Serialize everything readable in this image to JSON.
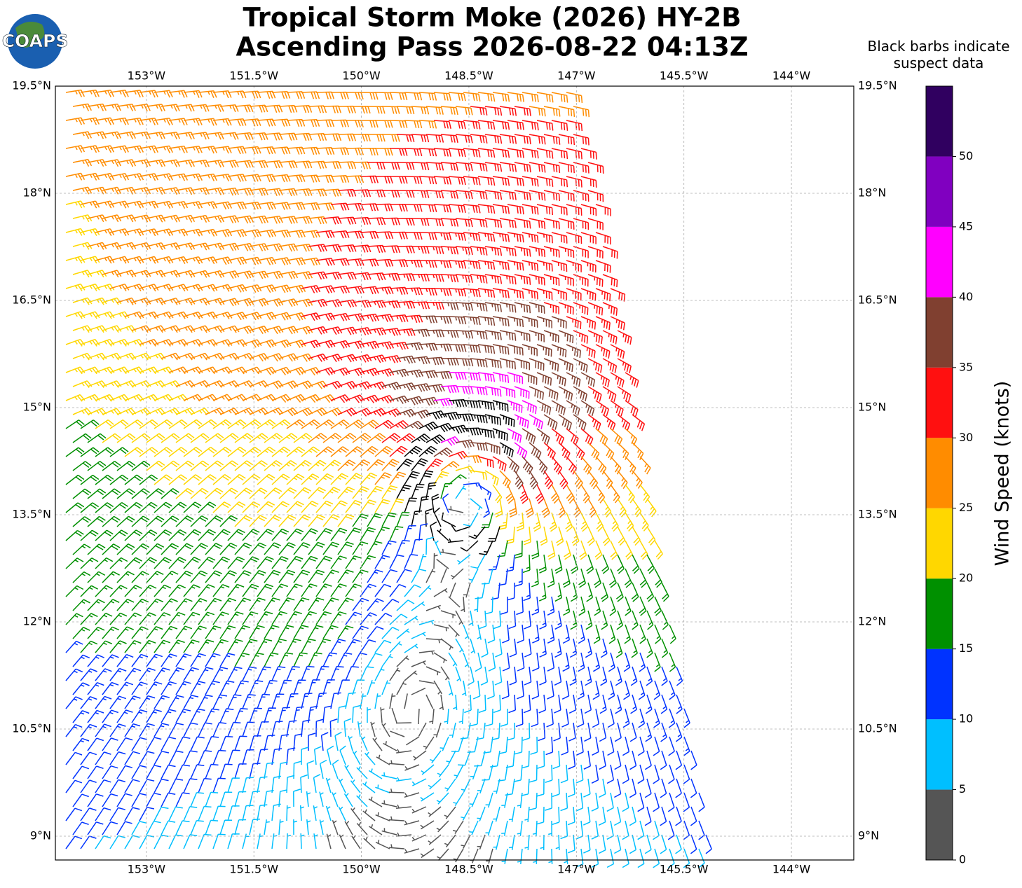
{
  "logo": "COAPS",
  "title": [
    "Tropical Storm Moke (2026) HY-2B",
    "Ascending Pass 2026-08-22 04:13Z"
  ],
  "note": "Black barbs indicate\nsuspect data",
  "map": {
    "xlim": [
      -154.27,
      -143.13
    ],
    "ylim": [
      8.667,
      19.5
    ],
    "xticks": [
      {
        "value": -153,
        "label": "153°W"
      },
      {
        "value": -151.5,
        "label": "151.5°W"
      },
      {
        "value": -150,
        "label": "150°W"
      },
      {
        "value": -148.5,
        "label": "148.5°W"
      },
      {
        "value": -147,
        "label": "147°W"
      },
      {
        "value": -145.5,
        "label": "145.5°W"
      },
      {
        "value": -144,
        "label": "144°W"
      }
    ],
    "yticks": [
      {
        "value": 9,
        "label": "9°N"
      },
      {
        "value": 10.5,
        "label": "10.5°N"
      },
      {
        "value": 12,
        "label": "12°N"
      },
      {
        "value": 13.5,
        "label": "13.5°N"
      },
      {
        "value": 15,
        "label": "15°N"
      },
      {
        "value": 16.5,
        "label": "16.5°N"
      },
      {
        "value": 18,
        "label": "18°N"
      },
      {
        "value": 19.5,
        "label": "19.5°N"
      }
    ]
  },
  "colorbar": {
    "label": "Wind Speed (knots)",
    "lim": [
      0,
      55
    ],
    "ticks": [
      0,
      5,
      10,
      15,
      20,
      25,
      30,
      35,
      40,
      45,
      50
    ],
    "colors": [
      "#555555",
      "#00bfff",
      "#0033ff",
      "#009000",
      "#ffd700",
      "#ff8c00",
      "#ff1010",
      "#804030",
      "#ff00ff",
      "#8000c0",
      "#300060"
    ]
  }
}
